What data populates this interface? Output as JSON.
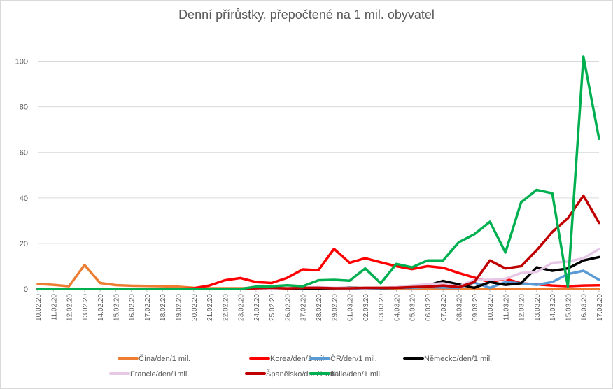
{
  "chart_data": {
    "type": "line",
    "title": "Denní přírůstky, přepočtené na 1 mil. obyvatel",
    "xlabel": "",
    "ylabel": "",
    "ylim": [
      0,
      110
    ],
    "yticks": [
      0,
      20,
      40,
      60,
      80,
      100
    ],
    "grid": true,
    "legend_position": "bottom",
    "x": [
      "10.02.20",
      "11.02.20",
      "12.02.20",
      "13.02.20",
      "14.02.20",
      "15.02.20",
      "16.02.20",
      "17.02.20",
      "18.02.20",
      "19.02.20",
      "20.02.20",
      "21.02.20",
      "22.02.20",
      "23.02.20",
      "24.02.20",
      "25.02.20",
      "26.02.20",
      "27.02.20",
      "28.02.20",
      "29.02.20",
      "01.03.20",
      "02.03.20",
      "03.03.20",
      "04.03.20",
      "05.03.20",
      "06.03.20",
      "07.03.20",
      "08.03.20",
      "09.03.20",
      "10.03.20",
      "11.03.20",
      "12.03.20",
      "13.03.20",
      "14.03.20",
      "15.03.20",
      "16.03.20",
      "17.03.20"
    ],
    "series": [
      {
        "name": "Čína/den/1 mil.",
        "color": "#ED7D31",
        "values": [
          2.2,
          1.8,
          1.2,
          10.5,
          2.6,
          1.7,
          1.4,
          1.3,
          1.2,
          1.0,
          0.5,
          0.3,
          0.3,
          0.3,
          0.3,
          0.3,
          0.3,
          0.3,
          0.3,
          0.3,
          0.3,
          0.2,
          0.1,
          0.1,
          0.1,
          0.1,
          0.1,
          0.1,
          0.1,
          0.1,
          0.1,
          0.1,
          0.1,
          0.1,
          0.1,
          0.1,
          0.1
        ]
      },
      {
        "name": "Korea/den/1 mil.",
        "color": "#FF0000",
        "values": [
          0,
          0,
          0,
          0,
          0,
          0,
          0,
          0,
          0,
          0,
          0.3,
          1.5,
          3.8,
          4.8,
          3.0,
          2.6,
          4.9,
          8.6,
          8.2,
          17.6,
          11.5,
          13.5,
          11.7,
          10.0,
          8.7,
          10.0,
          9.3,
          7.0,
          5.0,
          3.0,
          4.5,
          2.5,
          2.0,
          1.5,
          1.2,
          1.5,
          1.6
        ]
      },
      {
        "name": "ČR/den/1 mil.",
        "color": "#5B9BD5",
        "values": [
          0,
          0,
          0,
          0,
          0,
          0,
          0,
          0,
          0,
          0,
          0,
          0,
          0,
          0,
          0,
          0,
          0,
          0,
          0,
          0,
          0.3,
          0,
          0.2,
          0.5,
          0.5,
          0.8,
          0.6,
          0.5,
          2.8,
          0.5,
          3.0,
          2.5,
          1.8,
          3.0,
          6.5,
          8.0,
          4.0
        ]
      },
      {
        "name": "Německo/den/1 mil.",
        "color": "#000000",
        "values": [
          0,
          0,
          0,
          0,
          0,
          0,
          0,
          0,
          0,
          0,
          0,
          0,
          0,
          0,
          0,
          0,
          0.1,
          0.1,
          0.2,
          0.3,
          0.6,
          0.3,
          0.4,
          0.5,
          0.8,
          1.5,
          3.5,
          2.0,
          0.5,
          3.0,
          1.8,
          2.5,
          9.5,
          8.0,
          9.0,
          12.5,
          14.0
        ]
      },
      {
        "name": "Francie/den/1mil.",
        "color": "#E6C8E6",
        "values": [
          0,
          0,
          0,
          0,
          0,
          0,
          0,
          0,
          0,
          0,
          0,
          0,
          0,
          0,
          0,
          0.1,
          0.3,
          0.5,
          0.8,
          0.5,
          0.5,
          0.3,
          0.5,
          0.8,
          1.5,
          2.0,
          2.5,
          1.0,
          4.0,
          4.0,
          4.5,
          7.0,
          7.5,
          11.5,
          12.0,
          13.5,
          17.5
        ]
      },
      {
        "name": "Španělsko/den/1 mil.",
        "color": "#C00000",
        "values": [
          0,
          0,
          0,
          0,
          0,
          0,
          0,
          0,
          0,
          0,
          0,
          0,
          0,
          0,
          0.3,
          0.5,
          0.2,
          0.5,
          0.5,
          0.3,
          0.3,
          0.5,
          0.5,
          0.5,
          0.8,
          1.0,
          1.5,
          0.8,
          3.0,
          12.5,
          9.0,
          10.0,
          17.0,
          25.0,
          31.0,
          41.0,
          29.0
        ]
      },
      {
        "name": "Itálie/den/1 mil.",
        "color": "#00B050",
        "values": [
          0,
          0,
          0,
          0,
          0,
          0,
          0,
          0,
          0,
          0,
          0,
          0,
          0,
          0,
          1.0,
          1.2,
          1.6,
          1.2,
          3.8,
          4.0,
          3.6,
          9.0,
          2.5,
          11.0,
          9.5,
          12.5,
          12.5,
          20.5,
          24.0,
          29.5,
          16.0,
          38.0,
          43.5,
          42.0,
          1.0,
          102.0,
          66.0
        ]
      }
    ]
  }
}
